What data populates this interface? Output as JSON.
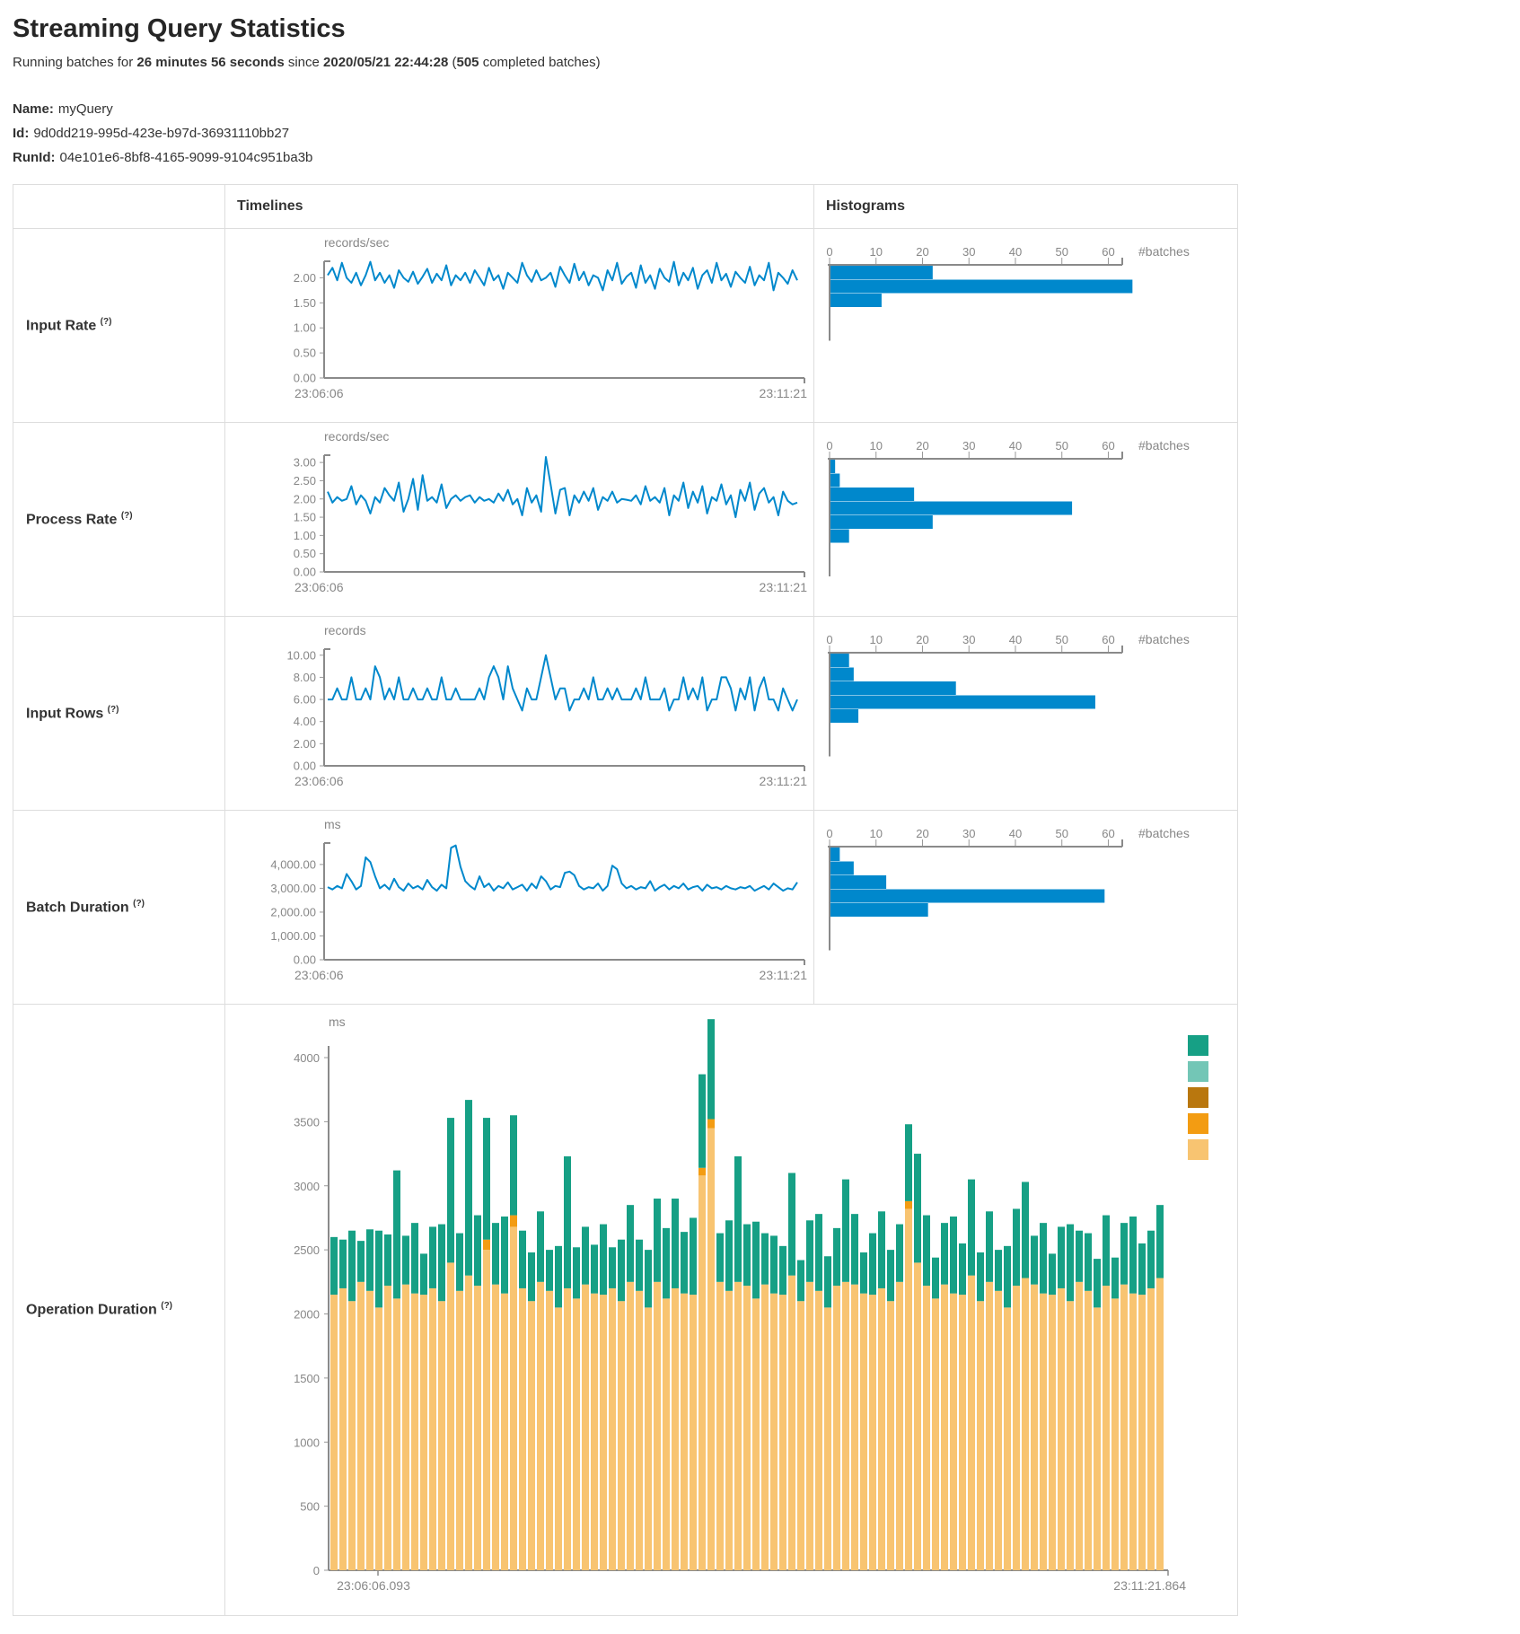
{
  "page": {
    "title": "Streaming Query Statistics",
    "subtitle": {
      "prefix": "Running batches for ",
      "duration": "26 minutes 56 seconds",
      "mid": " since ",
      "start_time": "2020/05/21 22:44:28",
      "open_paren": " (",
      "batch_count": "505",
      "suffix": " completed batches)"
    },
    "meta": {
      "name_label": "Name:",
      "name_value": "myQuery",
      "id_label": "Id:",
      "id_value": "9d0dd219-995d-423e-b97d-36931110bb27",
      "runid_label": "RunId:",
      "runid_value": "04e101e6-8bf8-4165-9099-9104c951ba3b"
    }
  },
  "table": {
    "col_timelines": "Timelines",
    "col_histograms": "Histograms",
    "rows": [
      {
        "label": "Input Rate",
        "help": "(?)"
      },
      {
        "label": "Process Rate",
        "help": "(?)"
      },
      {
        "label": "Input Rows",
        "help": "(?)"
      },
      {
        "label": "Batch Duration",
        "help": "(?)"
      },
      {
        "label": "Operation Duration",
        "help": "(?)"
      }
    ]
  },
  "colors": {
    "line_blue": "#0088CC",
    "bar_blue": "#0088CC",
    "axis_gray": "#999999",
    "legend": [
      "#16A085",
      "#73C6B6",
      "#B9770E",
      "#F39C12",
      "#F8C471"
    ]
  },
  "chart_data": {
    "input_rate_timeline": {
      "type": "line",
      "unit": "records/sec",
      "x_start": "23:06:06",
      "x_end": "23:11:21",
      "ymax": 2.33,
      "ytick_values": [
        2.0,
        1.5,
        1.0,
        0.5,
        0
      ],
      "ytick_labels": [
        "2.00",
        "1.50",
        "1.00",
        "0.50",
        "0.00"
      ],
      "values": [
        2.05,
        2.2,
        1.95,
        2.3,
        2.0,
        1.9,
        2.1,
        1.85,
        2.05,
        2.32,
        1.95,
        2.1,
        1.9,
        2.05,
        1.8,
        2.15,
        2.0,
        1.92,
        2.12,
        1.88,
        2.02,
        2.18,
        1.9,
        2.08,
        1.95,
        2.25,
        1.85,
        2.05,
        1.95,
        2.1,
        1.9,
        2.15,
        2.0,
        1.85,
        2.2,
        1.95,
        2.05,
        1.78,
        2.1,
        2.0,
        1.9,
        2.3,
        2.05,
        1.92,
        2.15,
        1.95,
        2.0,
        2.1,
        1.82,
        2.22,
        2.05,
        1.9,
        2.28,
        1.95,
        2.12,
        1.85,
        2.05,
        2.0,
        1.75,
        2.15,
        1.95,
        2.3,
        1.88,
        2.02,
        2.1,
        1.8,
        2.25,
        1.9,
        2.05,
        1.78,
        2.18,
        2.0,
        1.92,
        2.32,
        1.85,
        2.1,
        1.95,
        2.2,
        1.78,
        2.05,
        2.15,
        1.9,
        2.3,
        1.95,
        2.08,
        1.82,
        2.12,
        2.0,
        1.9,
        2.22,
        1.85,
        2.05,
        1.95,
        2.3,
        1.75,
        2.1,
        2.0,
        1.88,
        2.15,
        1.95
      ]
    },
    "input_rate_histogram": {
      "type": "bar",
      "orientation": "horizontal",
      "xlabel": "#batches",
      "ticks": [
        0,
        10,
        20,
        30,
        40,
        50,
        60
      ],
      "axis_max": 63,
      "values": [
        22,
        65,
        11
      ]
    },
    "process_rate_timeline": {
      "type": "line",
      "unit": "records/sec",
      "x_start": "23:06:06",
      "x_end": "23:11:21",
      "ymax": 3.2,
      "ytick_values": [
        3.0,
        2.5,
        2.0,
        1.5,
        1.0,
        0.5,
        0
      ],
      "ytick_labels": [
        "3.00",
        "2.50",
        "2.00",
        "1.50",
        "1.00",
        "0.50",
        "0.00"
      ],
      "values": [
        2.2,
        1.9,
        2.05,
        1.95,
        2.0,
        2.35,
        1.85,
        2.1,
        1.95,
        1.6,
        2.05,
        1.9,
        2.3,
        2.1,
        1.95,
        2.45,
        1.65,
        2.0,
        2.55,
        1.7,
        2.65,
        1.95,
        2.05,
        1.9,
        2.4,
        1.75,
        2.0,
        2.1,
        1.95,
        2.05,
        2.1,
        1.9,
        2.05,
        1.95,
        2.0,
        1.9,
        2.15,
        1.95,
        2.25,
        1.85,
        2.0,
        1.55,
        2.3,
        1.9,
        2.1,
        1.65,
        3.15,
        2.4,
        1.6,
        2.25,
        2.3,
        1.55,
        2.1,
        1.9,
        2.2,
        1.95,
        2.3,
        1.7,
        2.05,
        1.95,
        2.2,
        1.9,
        2.0,
        1.98,
        1.95,
        2.1,
        1.85,
        2.35,
        1.95,
        2.05,
        1.9,
        2.3,
        1.55,
        2.1,
        1.95,
        2.45,
        1.75,
        2.2,
        1.9,
        2.35,
        1.6,
        2.05,
        1.95,
        2.4,
        1.85,
        2.1,
        1.5,
        2.25,
        1.95,
        2.45,
        1.7,
        2.15,
        2.3,
        1.9,
        2.05,
        1.55,
        2.2,
        1.95,
        1.85,
        1.9
      ]
    },
    "process_rate_histogram": {
      "type": "bar",
      "orientation": "horizontal",
      "xlabel": "#batches",
      "ticks": [
        0,
        10,
        20,
        30,
        40,
        50,
        60
      ],
      "axis_max": 63,
      "values": [
        1,
        2,
        18,
        52,
        22,
        4
      ]
    },
    "input_rows_timeline": {
      "type": "line",
      "unit": "records",
      "x_start": "23:06:06",
      "x_end": "23:11:21",
      "ymax": 10.55,
      "ytick_values": [
        10,
        8,
        6,
        4,
        2,
        0
      ],
      "ytick_labels": [
        "10.00",
        "8.00",
        "6.00",
        "4.00",
        "2.00",
        "0.00"
      ],
      "values": [
        6,
        6,
        7,
        6,
        6,
        8,
        6,
        6,
        7,
        6,
        9,
        8,
        6,
        7,
        6,
        8,
        6,
        6,
        7,
        6,
        6,
        7,
        6,
        6,
        8,
        6,
        6,
        7,
        6,
        6,
        6,
        6,
        7,
        6,
        8,
        9,
        8,
        6,
        9,
        7,
        6,
        5,
        7,
        6,
        6,
        8,
        10,
        8,
        6,
        7,
        7,
        5,
        6,
        6,
        7,
        6,
        8,
        6,
        6,
        7,
        6,
        7,
        6,
        6,
        6,
        7,
        6,
        8,
        6,
        6,
        6,
        7,
        5,
        6,
        6,
        8,
        6,
        7,
        6,
        8,
        5,
        6,
        6,
        8,
        8,
        7,
        5,
        7,
        6,
        8,
        5,
        7,
        8,
        6,
        6,
        5,
        7,
        6,
        5,
        6
      ]
    },
    "input_rows_histogram": {
      "type": "bar",
      "orientation": "horizontal",
      "xlabel": "#batches",
      "ticks": [
        0,
        10,
        20,
        30,
        40,
        50,
        60
      ],
      "axis_max": 63,
      "values": [
        4,
        5,
        27,
        57,
        6
      ]
    },
    "batch_duration_timeline": {
      "type": "line",
      "unit": "ms",
      "x_start": "23:06:06",
      "x_end": "23:11:21",
      "ymax": 4900,
      "ytick_values": [
        4000,
        3000,
        2000,
        1000,
        0
      ],
      "ytick_labels": [
        "4,000.00",
        "3,000.00",
        "2,000.00",
        "1,000.00",
        "0.00"
      ],
      "values": [
        3050,
        2950,
        3100,
        3000,
        3600,
        3300,
        2950,
        3100,
        4300,
        4100,
        3500,
        3000,
        3150,
        2950,
        3400,
        3050,
        2900,
        3200,
        3000,
        3100,
        2950,
        3350,
        3050,
        2900,
        3150,
        3000,
        4700,
        4800,
        3900,
        3300,
        3100,
        2950,
        3500,
        3050,
        3200,
        2900,
        3100,
        3000,
        3250,
        2950,
        3050,
        3150,
        2900,
        3200,
        3000,
        3500,
        3300,
        2950,
        3100,
        3050,
        3650,
        3700,
        3550,
        3100,
        2950,
        3050,
        3000,
        3200,
        2900,
        3100,
        3950,
        3800,
        3200,
        3000,
        3100,
        2950,
        3050,
        3000,
        3300,
        2900,
        3050,
        3150,
        2950,
        3100,
        3000,
        3200,
        2950,
        3050,
        3100,
        2900,
        3150,
        3000,
        3050,
        2950,
        3100,
        3000,
        2950,
        3050,
        3000,
        3100,
        2900,
        3000,
        3100,
        2950,
        3200,
        3050,
        2900,
        3000,
        2950,
        3250
      ]
    },
    "batch_duration_histogram": {
      "type": "bar",
      "orientation": "horizontal",
      "xlabel": "#batches",
      "ticks": [
        0,
        10,
        20,
        30,
        40,
        50,
        60
      ],
      "axis_max": 63,
      "values": [
        2,
        5,
        12,
        59,
        21
      ]
    },
    "operation_duration": {
      "type": "stacked-bar",
      "unit": "ms",
      "x_start": "23:06:06.093",
      "x_end": "23:11:21.864",
      "ylim": [
        0,
        4400
      ],
      "ytick_values": [
        4000,
        3500,
        3000,
        2500,
        2000,
        1500,
        1000,
        500,
        0
      ],
      "ytick_labels": [
        "4000",
        "3500",
        "3000",
        "2500",
        "2000",
        "1500",
        "1000",
        "500",
        "0"
      ],
      "legend_colors": [
        "#16A085",
        "#73C6B6",
        "#B9770E",
        "#F39C12",
        "#F8C471"
      ],
      "series": [
        {
          "name": "bottom-segment",
          "color": "#F8C471",
          "values": [
            2150,
            2200,
            2100,
            2250,
            2180,
            2050,
            2220,
            2120,
            2230,
            2160,
            2150,
            2200,
            2100,
            2400,
            2180,
            2300,
            2220,
            2500,
            2230,
            2160,
            2680,
            2200,
            2100,
            2250,
            2180,
            2050,
            2200,
            2120,
            2230,
            2160,
            2150,
            2200,
            2100,
            2250,
            2180,
            2050,
            2250,
            2120,
            2200,
            2160,
            2150,
            3080,
            3450,
            2250,
            2180,
            2250,
            2220,
            2120,
            2230,
            2160,
            2150,
            2300,
            2100,
            2250,
            2180,
            2050,
            2220,
            2250,
            2230,
            2160,
            2150,
            2200,
            2100,
            2250,
            2820,
            2400,
            2220,
            2120,
            2230,
            2160,
            2150,
            2300,
            2100,
            2250,
            2180,
            2050,
            2220,
            2280,
            2230,
            2160,
            2150,
            2200,
            2100,
            2250,
            2180,
            2050,
            2220,
            2120,
            2230,
            2160,
            2150,
            2200,
            2280
          ]
        },
        {
          "name": "middle-segment",
          "color": "#F39C12",
          "values": [
            0,
            0,
            0,
            0,
            0,
            0,
            0,
            0,
            0,
            0,
            0,
            0,
            0,
            0,
            0,
            0,
            0,
            80,
            0,
            0,
            90,
            0,
            0,
            0,
            0,
            0,
            0,
            0,
            0,
            0,
            0,
            0,
            0,
            0,
            0,
            0,
            0,
            0,
            0,
            0,
            0,
            60,
            70,
            0,
            0,
            0,
            0,
            0,
            0,
            0,
            0,
            0,
            0,
            0,
            0,
            0,
            0,
            0,
            0,
            0,
            0,
            0,
            0,
            0,
            60,
            0,
            0,
            0,
            0,
            0,
            0,
            0,
            0,
            0,
            0,
            0,
            0,
            0,
            0,
            0,
            0,
            0,
            0,
            0,
            0,
            0,
            0,
            0,
            0,
            0,
            0,
            0,
            0
          ]
        },
        {
          "name": "top-segment",
          "color": "#16A085",
          "values": [
            450,
            380,
            550,
            320,
            480,
            600,
            400,
            1000,
            380,
            550,
            320,
            480,
            600,
            1130,
            450,
            1370,
            550,
            950,
            480,
            600,
            780,
            450,
            380,
            550,
            320,
            480,
            1030,
            400,
            450,
            380,
            550,
            320,
            480,
            600,
            400,
            450,
            650,
            550,
            700,
            480,
            600,
            730,
            780,
            380,
            550,
            980,
            480,
            600,
            400,
            450,
            380,
            800,
            320,
            480,
            600,
            400,
            450,
            800,
            550,
            320,
            480,
            600,
            400,
            450,
            600,
            850,
            550,
            320,
            480,
            600,
            400,
            750,
            380,
            550,
            320,
            480,
            600,
            750,
            380,
            550,
            320,
            480,
            600,
            400,
            450,
            380,
            550,
            320,
            480,
            600,
            400,
            450,
            570
          ]
        }
      ]
    }
  }
}
